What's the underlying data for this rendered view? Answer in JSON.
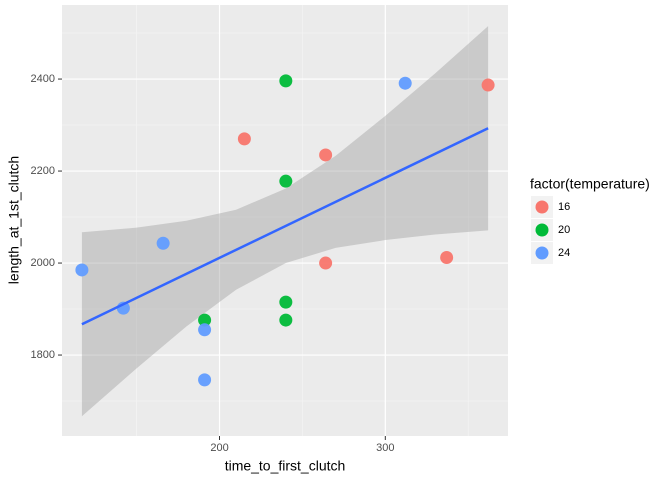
{
  "chart_data": {
    "type": "scatter",
    "x_label": "time_to_first_clutch",
    "y_label": "length_at_1st_clutch",
    "legend_title": "factor(temperature)",
    "xlim": [
      105,
      374
    ],
    "ylim": [
      1624,
      2561
    ],
    "xticks": [
      200,
      300
    ],
    "yticks": [
      1800,
      2000,
      2200,
      2400
    ],
    "xminor": [
      150,
      250,
      350
    ],
    "yminor": [
      1700,
      1900,
      2100,
      2300,
      2500
    ],
    "grid": true,
    "series": [
      {
        "name": "16",
        "color": "#F8766D",
        "x": [
          215,
          264,
          264,
          337,
          362
        ],
        "values": [
          2270,
          2235,
          2000,
          2012,
          2387
        ]
      },
      {
        "name": "20",
        "color": "#00BA38",
        "x": [
          240,
          240,
          240,
          240,
          191
        ],
        "values": [
          2396,
          2178,
          1915,
          1876,
          1876
        ]
      },
      {
        "name": "24",
        "color": "#619CFF",
        "x": [
          117,
          142,
          166,
          191,
          191,
          312
        ],
        "values": [
          1985,
          1902,
          2043,
          1855,
          1746,
          2391
        ]
      }
    ],
    "fit": {
      "color": "#3366FF",
      "x": [
        117,
        362
      ],
      "values": [
        1867,
        2293
      ]
    },
    "ribbon": {
      "color": "#999999",
      "x": [
        117,
        150,
        180,
        210,
        240,
        270,
        300,
        330,
        362
      ],
      "lower": [
        1667,
        1771,
        1862,
        1942,
        2000,
        2033,
        2050,
        2062,
        2071
      ],
      "upper": [
        2067,
        2077,
        2092,
        2116,
        2162,
        2233,
        2320,
        2412,
        2515
      ]
    }
  }
}
